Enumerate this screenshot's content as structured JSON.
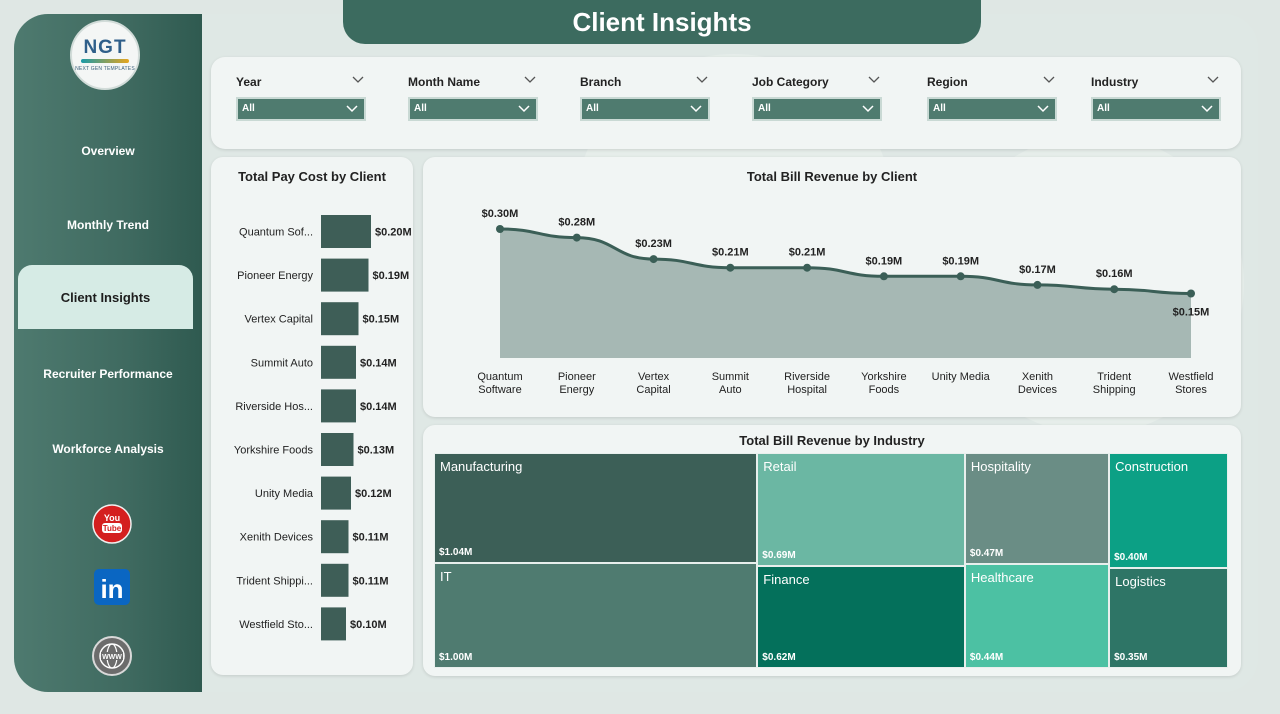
{
  "title": "Client Insights",
  "logo": {
    "main": "NGT",
    "sub": "NEXT GEN TEMPLATES"
  },
  "nav": [
    {
      "label": "Overview",
      "active": false
    },
    {
      "label": "Monthly Trend",
      "active": false
    },
    {
      "label": "Client Insights",
      "active": true
    },
    {
      "label": "Recruiter Performance",
      "active": false
    },
    {
      "label": "Workforce Analysis",
      "active": false
    }
  ],
  "social": [
    {
      "name": "youtube-icon",
      "text": "You Tube",
      "color": "#d41f1f"
    },
    {
      "name": "linkedin-icon",
      "text": "in",
      "color": "#0a66c2"
    },
    {
      "name": "website-icon",
      "text": "WWW",
      "color": "#6c6c6c"
    }
  ],
  "filters": [
    {
      "label": "Year",
      "value": "All"
    },
    {
      "label": "Month Name",
      "value": "All"
    },
    {
      "label": "Branch",
      "value": "All"
    },
    {
      "label": "Job Category",
      "value": "All"
    },
    {
      "label": "Region",
      "value": "All"
    },
    {
      "label": "Industry",
      "value": "All"
    }
  ],
  "colors": {
    "accent": "#3c6b5f",
    "bar": "#3e5e57",
    "area": "#a6b8b4",
    "line": "#3b5f57"
  },
  "pay_cost": {
    "title": "Total Pay Cost by Client"
  },
  "bill_revenue": {
    "title": "Total Bill Revenue by Client"
  },
  "industry": {
    "title": "Total Bill Revenue by Industry"
  },
  "chart_data": [
    {
      "type": "bar",
      "orientation": "horizontal",
      "title": "Total Pay Cost by Client",
      "categories": [
        "Quantum Sof...",
        "Pioneer Energy",
        "Vertex Capital",
        "Summit Auto",
        "Riverside Hos...",
        "Yorkshire Foods",
        "Unity Media",
        "Xenith Devices",
        "Trident Shippi...",
        "Westfield Sto..."
      ],
      "values": [
        0.2,
        0.19,
        0.15,
        0.14,
        0.14,
        0.13,
        0.12,
        0.11,
        0.11,
        0.1
      ],
      "labels": [
        "$0.20M",
        "$0.19M",
        "$0.15M",
        "$0.14M",
        "$0.14M",
        "$0.13M",
        "$0.12M",
        "$0.11M",
        "$0.11M",
        "$0.10M"
      ],
      "xlim": [
        0,
        0.2
      ]
    },
    {
      "type": "area",
      "title": "Total Bill Revenue by Client",
      "categories": [
        [
          "Quantum",
          "Software"
        ],
        [
          "Pioneer",
          "Energy"
        ],
        [
          "Vertex",
          "Capital"
        ],
        [
          "Summit",
          "Auto"
        ],
        [
          "Riverside",
          "Hospital"
        ],
        [
          "Yorkshire",
          "Foods"
        ],
        [
          "Unity Media"
        ],
        [
          "Xenith",
          "Devices"
        ],
        [
          "Trident",
          "Shipping"
        ],
        [
          "Westfield",
          "Stores"
        ]
      ],
      "values": [
        0.3,
        0.28,
        0.23,
        0.21,
        0.21,
        0.19,
        0.19,
        0.17,
        0.16,
        0.15
      ],
      "labels": [
        "$0.30M",
        "$0.28M",
        "$0.23M",
        "$0.21M",
        "$0.21M",
        "$0.19M",
        "$0.19M",
        "$0.17M",
        "$0.16M",
        "$0.15M"
      ],
      "ylim": [
        0,
        0.3
      ]
    },
    {
      "type": "treemap",
      "title": "Total Bill Revenue by Industry",
      "items": [
        {
          "name": "Manufacturing",
          "value": 1.04,
          "label": "$1.04M",
          "color": "#3c5f57"
        },
        {
          "name": "IT",
          "value": 1.0,
          "label": "$1.00M",
          "color": "#4f7b70"
        },
        {
          "name": "Retail",
          "value": 0.69,
          "label": "$0.69M",
          "color": "#6bb7a3"
        },
        {
          "name": "Finance",
          "value": 0.62,
          "label": "$0.62M",
          "color": "#04705b"
        },
        {
          "name": "Hospitality",
          "value": 0.47,
          "label": "$0.47M",
          "color": "#6a8d85"
        },
        {
          "name": "Healthcare",
          "value": 0.44,
          "label": "$0.44M",
          "color": "#4cc1a3"
        },
        {
          "name": "Construction",
          "value": 0.4,
          "label": "$0.40M",
          "color": "#0ca085"
        },
        {
          "name": "Logistics",
          "value": 0.35,
          "label": "$0.35M",
          "color": "#2e7566"
        }
      ]
    }
  ]
}
